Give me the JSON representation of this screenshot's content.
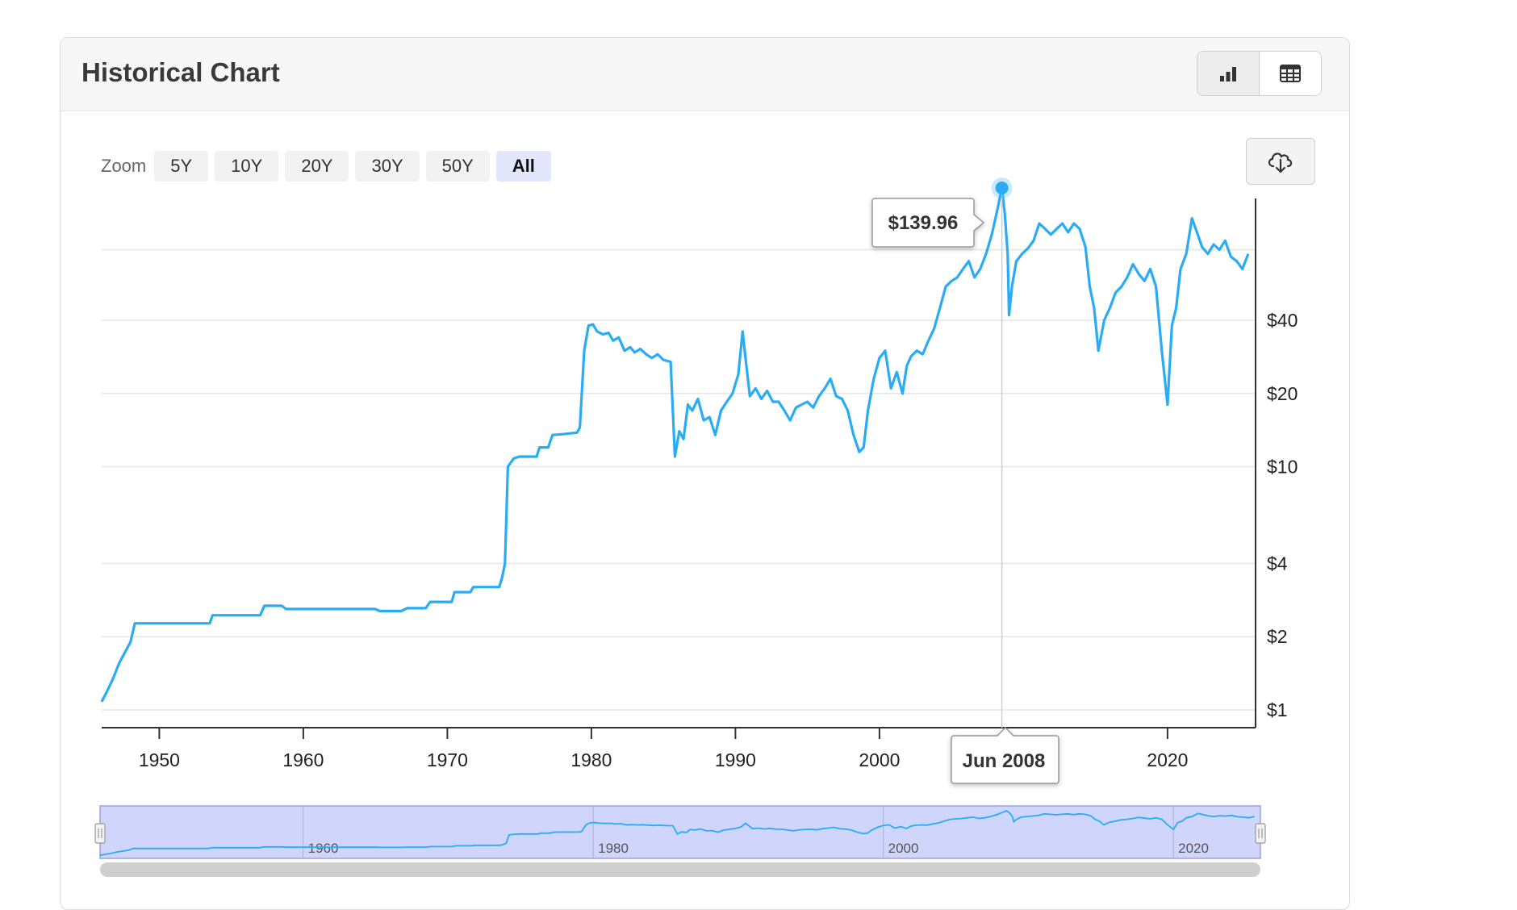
{
  "card": {
    "title": "Historical Chart"
  },
  "toolbar": {
    "zoom_label": "Zoom",
    "zoom_options": [
      "5Y",
      "10Y",
      "20Y",
      "30Y",
      "50Y",
      "All"
    ],
    "zoom_selected": "All",
    "view_icons": [
      "bar-chart-icon",
      "table-icon"
    ],
    "download_icon": "cloud-download-icon"
  },
  "colors": {
    "line": "#29abf6",
    "navigator_fill": "#cfd5fb",
    "accent": "#29abf6"
  },
  "tooltip": {
    "value": "$139.96",
    "date": "Jun 2008"
  },
  "chart_data": {
    "type": "line",
    "title": "",
    "xlabel": "",
    "ylabel": "",
    "yscale": "log",
    "xlim": [
      1946,
      2026
    ],
    "x_ticks": [
      "1950",
      "1960",
      "1970",
      "1980",
      "1990",
      "2000",
      "2020"
    ],
    "y_ticks": [
      {
        "label": "$1",
        "value": 1
      },
      {
        "label": "$2",
        "value": 2
      },
      {
        "label": "$4",
        "value": 4
      },
      {
        "label": "$10",
        "value": 10
      },
      {
        "label": "$20",
        "value": 20
      },
      {
        "label": "$40",
        "value": 40
      }
    ],
    "grid": true,
    "navigator_ticks": [
      "1960",
      "1980",
      "2000",
      "2020"
    ],
    "series": [
      {
        "x": [
          1946.0,
          1946.4,
          1946.8,
          1947.2,
          1947.6,
          1948.0,
          1948.3,
          1953.5,
          1953.7,
          1957.0,
          1957.3,
          1958.5,
          1958.8,
          1965.0,
          1965.3,
          1966.8,
          1967.2,
          1968.5,
          1968.8,
          1970.3,
          1970.5,
          1971.6,
          1971.8,
          1973.6,
          1973.8,
          1974.0,
          1974.2,
          1974.6,
          1975.0,
          1976.2,
          1976.4,
          1977.0,
          1977.3,
          1978.0,
          1979.0,
          1979.2,
          1979.5,
          1979.8,
          1980.1,
          1980.4,
          1980.8,
          1981.2,
          1981.5,
          1981.9,
          1982.3,
          1982.7,
          1983.0,
          1983.4,
          1983.8,
          1984.2,
          1984.6,
          1985.0,
          1985.5,
          1985.8,
          1986.1,
          1986.4,
          1986.7,
          1987.0,
          1987.4,
          1987.8,
          1988.2,
          1988.6,
          1989.0,
          1989.4,
          1989.8,
          1990.2,
          1990.5,
          1990.7,
          1991.0,
          1991.4,
          1991.8,
          1992.2,
          1992.6,
          1993.0,
          1993.4,
          1993.8,
          1994.2,
          1994.6,
          1995.0,
          1995.4,
          1995.8,
          1996.2,
          1996.6,
          1997.0,
          1997.4,
          1997.8,
          1998.2,
          1998.6,
          1998.9,
          1999.2,
          1999.6,
          2000.0,
          2000.4,
          2000.8,
          2001.2,
          2001.6,
          2001.9,
          2002.2,
          2002.6,
          2003.0,
          2003.4,
          2003.8,
          2004.2,
          2004.6,
          2005.0,
          2005.4,
          2005.8,
          2006.2,
          2006.6,
          2007.0,
          2007.4,
          2007.8,
          2008.2,
          2008.5,
          2008.7,
          2008.9,
          2009.0,
          2009.2,
          2009.5,
          2009.9,
          2010.3,
          2010.7,
          2011.1,
          2011.5,
          2011.9,
          2012.3,
          2012.7,
          2013.1,
          2013.5,
          2013.9,
          2014.3,
          2014.6,
          2014.9,
          2015.2,
          2015.6,
          2016.0,
          2016.4,
          2016.8,
          2017.2,
          2017.6,
          2018.0,
          2018.4,
          2018.8,
          2019.2,
          2019.6,
          2020.0,
          2020.3,
          2020.6,
          2020.9,
          2021.3,
          2021.7,
          2022.1,
          2022.4,
          2022.8,
          2023.2,
          2023.6,
          2024.0,
          2024.4,
          2024.8,
          2025.2,
          2025.6
        ],
        "y": [
          1.08,
          1.2,
          1.35,
          1.55,
          1.72,
          1.9,
          2.27,
          2.27,
          2.45,
          2.45,
          2.68,
          2.68,
          2.6,
          2.6,
          2.55,
          2.55,
          2.62,
          2.62,
          2.78,
          2.78,
          3.05,
          3.05,
          3.2,
          3.2,
          3.5,
          4.0,
          10.0,
          10.8,
          11.0,
          11.0,
          12.0,
          12.0,
          13.5,
          13.6,
          13.8,
          14.5,
          30.0,
          38.0,
          38.5,
          36.0,
          35.0,
          35.5,
          33.0,
          34.0,
          30.0,
          31.0,
          29.5,
          30.5,
          29.0,
          28.0,
          29.0,
          27.5,
          27.0,
          11.0,
          14.0,
          13.0,
          18.0,
          17.0,
          19.0,
          15.5,
          16.0,
          13.5,
          17.0,
          18.5,
          20.0,
          24.0,
          36.0,
          28.0,
          19.5,
          21.0,
          19.0,
          20.5,
          18.5,
          18.5,
          17.0,
          15.5,
          17.5,
          18.0,
          18.5,
          17.5,
          19.5,
          21.0,
          23.0,
          19.5,
          19.0,
          17.0,
          13.5,
          11.5,
          12.0,
          17.0,
          23.0,
          28.0,
          30.0,
          21.0,
          24.5,
          20.0,
          26.0,
          28.5,
          30.0,
          29.0,
          33.0,
          37.0,
          45.0,
          55.0,
          58.0,
          60.0,
          65.0,
          70.0,
          60.0,
          65.0,
          75.0,
          90.0,
          115.0,
          139.96,
          110.0,
          75.0,
          42.0,
          55.0,
          70.0,
          75.0,
          79.0,
          85.0,
          100.0,
          95.0,
          90.0,
          95.0,
          100.0,
          92.0,
          100.0,
          95.0,
          80.0,
          55.0,
          45.0,
          30.0,
          40.0,
          45.0,
          52.0,
          55.0,
          60.0,
          68.0,
          62.0,
          58.0,
          65.0,
          55.0,
          30.0,
          18.0,
          38.0,
          45.0,
          65.0,
          75.0,
          105.0,
          90.0,
          80.0,
          75.0,
          82.0,
          78.0,
          85.0,
          73.0,
          70.0,
          65.0,
          75.0
        ]
      }
    ]
  }
}
